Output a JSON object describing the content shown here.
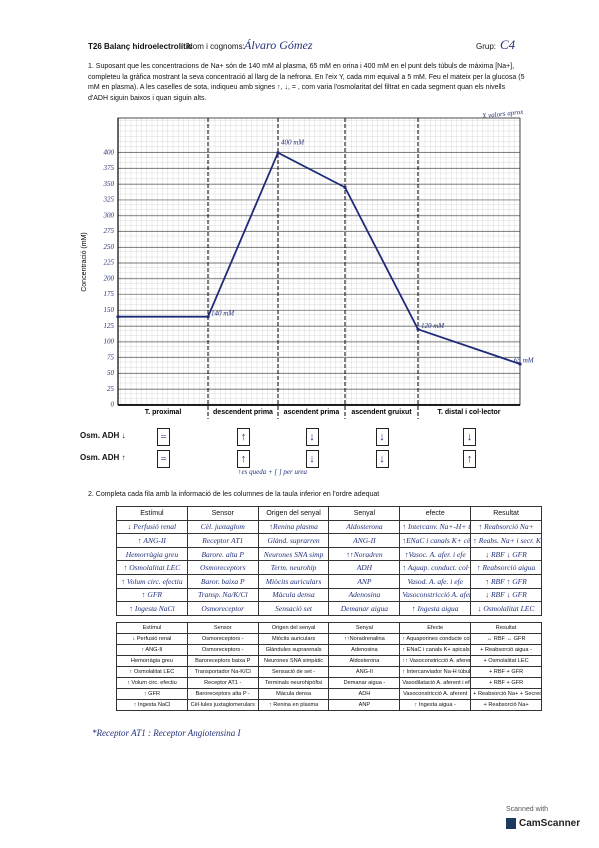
{
  "header": {
    "title": "T26 Balanç hidroelectrolític",
    "name_label": "Nom i cognoms:",
    "name": "Álvaro Gómez",
    "group_label": "Grup:",
    "group": "C4"
  },
  "question1": "1. Suposant que les concentracions de Na+ són de 140 mM al plasma, 65 mM en orina i 400 mM en el punt dels túbuls de màxima [Na+], completeu la gràfica mostrant la seva concentració al llarg de la nefrona. En l'eix Y, cada mm equival a 5 mM. Feu el mateix per la glucosa (5 mM en plasma). A les caselles de sota, indiqueu amb signes ↑, ↓, = , com varia l'osmolaritat del filtrat en cada segment quan els nivells d'ADH siguin baixos i quan siguin alts.",
  "margin_note": "X valors aprox",
  "chart_data": {
    "type": "line",
    "y_label": "Concentració (mM)",
    "segments": [
      "T. proximal",
      "descendent prima",
      "ascendent prima",
      "ascendent gruixut",
      "T. distal i col·lector"
    ],
    "values": [
      140,
      140,
      400,
      345,
      120,
      65
    ],
    "color": "#1f2b78",
    "ylim": [
      0,
      455
    ],
    "yticks": [
      0,
      25,
      50,
      75,
      100,
      125,
      150,
      175,
      200,
      225,
      250,
      275,
      300,
      325,
      350,
      375,
      400
    ],
    "grid": true,
    "annotations": [
      "140 mM",
      "400 mM",
      "120 mM",
      "65 mM"
    ]
  },
  "adh": {
    "rows": [
      {
        "label": "Osm. ADH ↓",
        "signs": [
          "=",
          "↑",
          "↓",
          "↓",
          "↓"
        ]
      },
      {
        "label": "Osm. ADH ↑",
        "signs": [
          "=",
          "↑",
          "↓",
          "↓",
          "↑"
        ]
      }
    ],
    "note": "↑es queda + [ ] per urea"
  },
  "question2": "2. Completa cada fila amb la informació de les columnes de la taula inferior en l'ordre adequat",
  "table1": {
    "header": [
      "Estímul",
      "Sensor",
      "Origen del senyal",
      "Senyal",
      "efecte",
      "Resultat"
    ],
    "rows": [
      [
        "↓ Perfusió renal",
        "Cèl. juxtaglom",
        "↑Renina plasma",
        "Aldosterona",
        "↑ Intercanv. Na+-H+ tub. prox",
        "↑ Reabsorció Na+"
      ],
      [
        "↑ ANG-II",
        "Receptor AT1",
        "Glànd. suprarren",
        "ANG-II",
        "↑ENaC i canals K+ cèl. princ.",
        "↑ Reabs. Na+ i secr. K+"
      ],
      [
        "Hemorràgia greu",
        "Barore. alta P",
        "Neurones SNA simp",
        "↑↑Noradren",
        "↑Vasoc. A. afer. i efe",
        "↓ RBF ↓ GFR"
      ],
      [
        "↑ Osmolalitat LEC",
        "Osmoreceptors",
        "Term. neurohip",
        "ADH",
        "↑ Aquap. conduct. col·lector",
        "↑ Reabsorció aigua"
      ],
      [
        "↑ Volum circ. efectiu",
        "Baror. baixa P",
        "Miòcits auriculars",
        "ANP",
        "Vasod. A. afe. i efe",
        "↑ RBF ↑ GFR"
      ],
      [
        "↑ GFR",
        "Transp. Na/K/Cl",
        "Màcula densa",
        "Adenosina",
        "Vasoconstricció A. aferent",
        "↓ RBF ↓ GFR"
      ],
      [
        "↑ Ingesta NaCl",
        "Osmoreceptor",
        "Sensació set",
        "Demanar aigua",
        "↑ Ingesta aigua",
        "↓ Osmolalitat LEC"
      ]
    ]
  },
  "table2": {
    "header": [
      "Estímul",
      "Sensor",
      "Origen del senyal",
      "Senyal",
      "Efecte",
      "Resultat"
    ],
    "rows": [
      [
        "↓ Perfusió renal",
        "Osmoreceptors -",
        "Miòcits auriculars",
        "↑↑Noradrenalina",
        "↑ Aquaporines conducte col·lector",
        "↔ RBF ↔ GFR"
      ],
      [
        "↑ ANG-II",
        "Osmoreceptors -",
        "Glàndules suprarenals",
        "Adenosina",
        "↑ ENaC i canals K+ apicals cèls. principals",
        "+ Reabsorció aigua -"
      ],
      [
        "Hemorràgia greu",
        "Baroreceptors baixa P",
        "Neurones SNA simpàtic",
        "Aldosterona",
        "↑↑ Vasoconstricció A. aferent i eferent -",
        "+ Osmolalitat LEC"
      ],
      [
        "↑ Osmolalitat LEC",
        "Transportador Na-K/Cl",
        "Sensació de set -",
        "ANG-II",
        "↑ Intercanviador Na-H túbul proximal",
        "+ RBF + GFR"
      ],
      [
        "↑ Volum circ. efectiu",
        "Receptor AT1 -",
        "Terminals neurohipòfisi",
        "Demanar aigua -",
        "Vasodilatació A. aferent i eferent -",
        "+ RBF + GFR"
      ],
      [
        "↑ GFR",
        "Baroreceptors alta P -",
        "Màcula densa",
        "ADH",
        "Vasoconstricció A. aferent",
        "+ Reabsorció Na+ + Secreció K+"
      ],
      [
        "↑ Ingesta NaCl",
        "Cèl·lules juxtaglomerulars",
        "↑ Renina en plasma",
        "ANP",
        "↑ Ingesta aigua -",
        "+ Reabsorció Na+"
      ]
    ]
  },
  "footnote": "*Receptor AT1 : Receptor Angiotensina I",
  "scanner": {
    "line1": "Scanned with",
    "line2": "CamScanner"
  }
}
